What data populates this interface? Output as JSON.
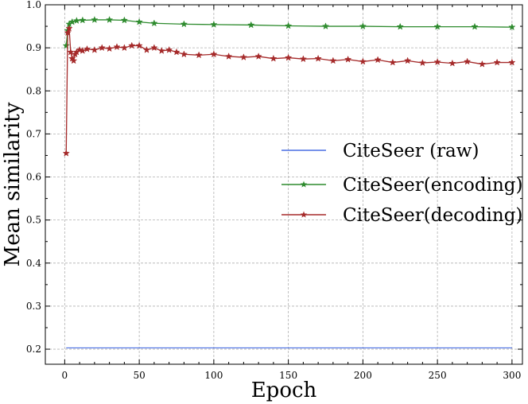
{
  "chart_data": {
    "type": "line",
    "title": "",
    "xlabel": "Epoch",
    "ylabel": "Mean similarity",
    "xlim": [
      -13,
      307
    ],
    "ylim": [
      0.165,
      1.0
    ],
    "xticks": [
      0,
      50,
      100,
      150,
      200,
      250,
      300
    ],
    "yticks": [
      0.2,
      0.3,
      0.4,
      0.5,
      0.6,
      0.7,
      0.8,
      0.9,
      1.0
    ],
    "grid": true,
    "legend_position": "center-right",
    "series": [
      {
        "name": "CiteSeer (raw)",
        "color": "#4a6fe3",
        "marker": "none",
        "x": [
          1,
          300
        ],
        "y": [
          0.203,
          0.203
        ]
      },
      {
        "name": "CiteSeer(encoding)",
        "color": "#2e8b2e",
        "marker": "star",
        "x": [
          1,
          2,
          3,
          5,
          8,
          12,
          20,
          30,
          40,
          50,
          60,
          80,
          100,
          125,
          150,
          175,
          200,
          225,
          250,
          275,
          300
        ],
        "y": [
          0.905,
          0.94,
          0.955,
          0.96,
          0.963,
          0.964,
          0.965,
          0.965,
          0.964,
          0.96,
          0.957,
          0.955,
          0.954,
          0.953,
          0.951,
          0.95,
          0.95,
          0.949,
          0.949,
          0.949,
          0.948
        ]
      },
      {
        "name": "CiteSeer(decoding)",
        "color": "#a52a2a",
        "marker": "star",
        "x": [
          1,
          2,
          3,
          4,
          5,
          6,
          7,
          8,
          10,
          12,
          15,
          20,
          25,
          30,
          35,
          40,
          45,
          50,
          55,
          60,
          65,
          70,
          75,
          80,
          90,
          100,
          110,
          120,
          130,
          140,
          150,
          160,
          170,
          180,
          190,
          200,
          210,
          220,
          230,
          240,
          250,
          260,
          270,
          280,
          290,
          300
        ],
        "y": [
          0.655,
          0.935,
          0.945,
          0.89,
          0.875,
          0.87,
          0.885,
          0.89,
          0.895,
          0.893,
          0.897,
          0.895,
          0.9,
          0.898,
          0.902,
          0.9,
          0.905,
          0.905,
          0.895,
          0.9,
          0.893,
          0.895,
          0.89,
          0.885,
          0.883,
          0.885,
          0.88,
          0.878,
          0.88,
          0.875,
          0.877,
          0.874,
          0.875,
          0.87,
          0.873,
          0.868,
          0.872,
          0.866,
          0.87,
          0.865,
          0.867,
          0.864,
          0.868,
          0.862,
          0.866,
          0.866
        ]
      }
    ]
  }
}
